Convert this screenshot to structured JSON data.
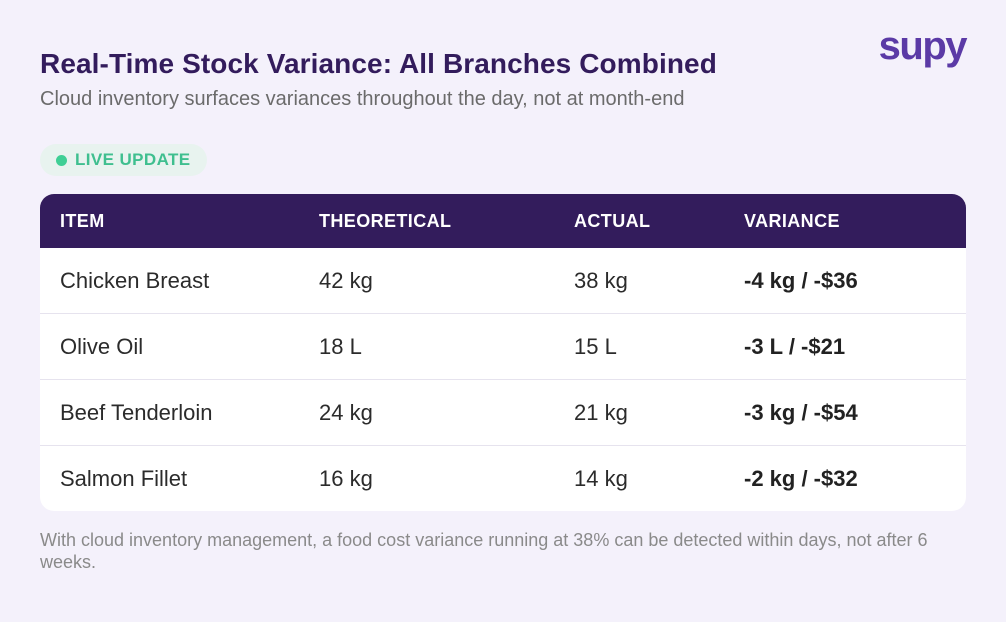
{
  "header": {
    "title": "Real-Time Stock Variance: All Branches Combined",
    "subtitle": "Cloud inventory surfaces variances throughout the day, not at month-end",
    "logo_text": "supy"
  },
  "badge": {
    "label": "LIVE UPDATE",
    "dot_color": "#3fcf95"
  },
  "table": {
    "columns": [
      "ITEM",
      "THEORETICAL",
      "ACTUAL",
      "VARIANCE"
    ],
    "rows": [
      {
        "item": "Chicken Breast",
        "theoretical": "42 kg",
        "actual": "38 kg",
        "variance": "-4 kg / -$36"
      },
      {
        "item": "Olive Oil",
        "theoretical": "18 L",
        "actual": "15 L",
        "variance": "-3 L / -$21"
      },
      {
        "item": "Beef Tenderloin",
        "theoretical": "24 kg",
        "actual": "21 kg",
        "variance": "-3 kg / -$54"
      },
      {
        "item": "Salmon Fillet",
        "theoretical": "16 kg",
        "actual": "14 kg",
        "variance": "-2 kg / -$32"
      }
    ]
  },
  "footnote": "With cloud inventory management, a food cost variance running at 38% can be detected within days, not after 6 weeks.",
  "colors": {
    "header_bg": "#331c5c",
    "brand": "#5b3aa6",
    "page_bg": "#f4f1fb"
  }
}
